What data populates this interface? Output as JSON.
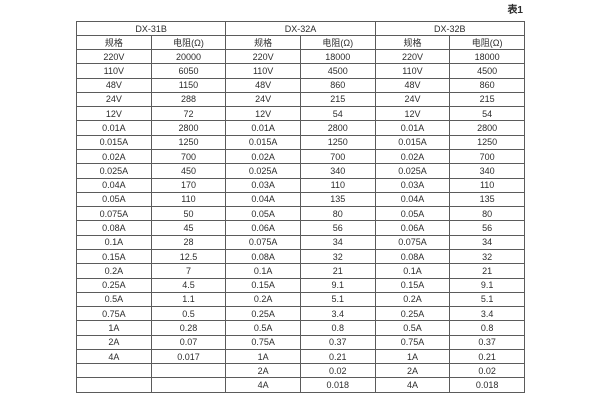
{
  "caption": "表1",
  "table": {
    "groups": [
      {
        "label": "DX-31B"
      },
      {
        "label": "DX-32A"
      },
      {
        "label": "DX-32B"
      }
    ],
    "sub_headers": [
      "规格",
      "电阻(Ω)"
    ],
    "rows": [
      [
        "220V",
        "20000",
        "220V",
        "18000",
        "220V",
        "18000"
      ],
      [
        "110V",
        "6050",
        "110V",
        "4500",
        "110V",
        "4500"
      ],
      [
        "48V",
        "1150",
        "48V",
        "860",
        "48V",
        "860"
      ],
      [
        "24V",
        "288",
        "24V",
        "215",
        "24V",
        "215"
      ],
      [
        "12V",
        "72",
        "12V",
        "54",
        "12V",
        "54"
      ],
      [
        "0.01A",
        "2800",
        "0.01A",
        "2800",
        "0.01A",
        "2800"
      ],
      [
        "0.015A",
        "1250",
        "0.015A",
        "1250",
        "0.015A",
        "1250"
      ],
      [
        "0.02A",
        "700",
        "0.02A",
        "700",
        "0.02A",
        "700"
      ],
      [
        "0.025A",
        "450",
        "0.025A",
        "340",
        "0.025A",
        "340"
      ],
      [
        "0.04A",
        "170",
        "0.03A",
        "110",
        "0.03A",
        "110"
      ],
      [
        "0.05A",
        "110",
        "0.04A",
        "135",
        "0.04A",
        "135"
      ],
      [
        "0.075A",
        "50",
        "0.05A",
        "80",
        "0.05A",
        "80"
      ],
      [
        "0.08A",
        "45",
        "0.06A",
        "56",
        "0.06A",
        "56"
      ],
      [
        "0.1A",
        "28",
        "0.075A",
        "34",
        "0.075A",
        "34"
      ],
      [
        "0.15A",
        "12.5",
        "0.08A",
        "32",
        "0.08A",
        "32"
      ],
      [
        "0.2A",
        "7",
        "0.1A",
        "21",
        "0.1A",
        "21"
      ],
      [
        "0.25A",
        "4.5",
        "0.15A",
        "9.1",
        "0.15A",
        "9.1"
      ],
      [
        "0.5A",
        "1.1",
        "0.2A",
        "5.1",
        "0.2A",
        "5.1"
      ],
      [
        "0.75A",
        "0.5",
        "0.25A",
        "3.4",
        "0.25A",
        "3.4"
      ],
      [
        "1A",
        "0.28",
        "0.5A",
        "0.8",
        "0.5A",
        "0.8"
      ],
      [
        "2A",
        "0.07",
        "0.75A",
        "0.37",
        "0.75A",
        "0.37"
      ],
      [
        "4A",
        "0.017",
        "1A",
        "0.21",
        "1A",
        "0.21"
      ],
      [
        "",
        "",
        "2A",
        "0.02",
        "2A",
        "0.02"
      ],
      [
        "",
        "",
        "4A",
        "0.018",
        "4A",
        "0.018"
      ]
    ],
    "colors": {
      "border": "#5b5b5b",
      "text": "#2d2d2d",
      "background": "#ffffff"
    }
  }
}
